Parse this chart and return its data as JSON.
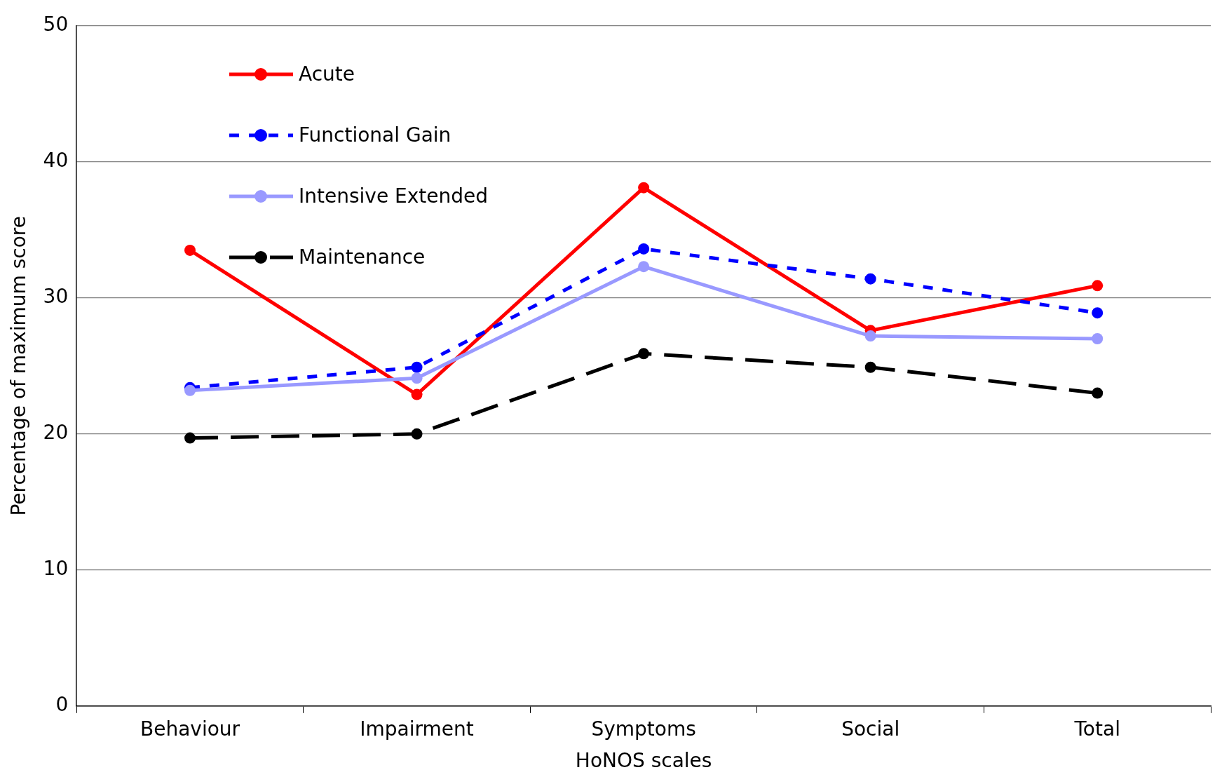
{
  "chart_data": {
    "type": "line",
    "xlabel": "HoNOS scales",
    "ylabel": "Percentage of maximum score",
    "categories": [
      "Behaviour",
      "Impairment",
      "Symptoms",
      "Social",
      "Total"
    ],
    "series": [
      {
        "name": "Acute",
        "color": "#ff0000",
        "line_style": "solid",
        "values": [
          33.5,
          22.9,
          38.1,
          27.6,
          30.9
        ]
      },
      {
        "name": "Functional Gain",
        "color": "#0000ff",
        "line_style": "dotted",
        "values": [
          23.4,
          24.9,
          33.6,
          31.4,
          28.9
        ]
      },
      {
        "name": "Intensive Extended",
        "color": "#9999ff",
        "line_style": "solid",
        "values": [
          23.2,
          24.1,
          32.3,
          27.2,
          27.0
        ]
      },
      {
        "name": "Maintenance",
        "color": "#000000",
        "line_style": "dashed",
        "values": [
          19.7,
          20.0,
          25.9,
          24.9,
          23.0
        ]
      }
    ],
    "ylim": [
      0,
      50
    ],
    "yticks": [
      0,
      10,
      20,
      30,
      40,
      50
    ],
    "grid": "y",
    "legend": "top left",
    "marker": "circle"
  }
}
